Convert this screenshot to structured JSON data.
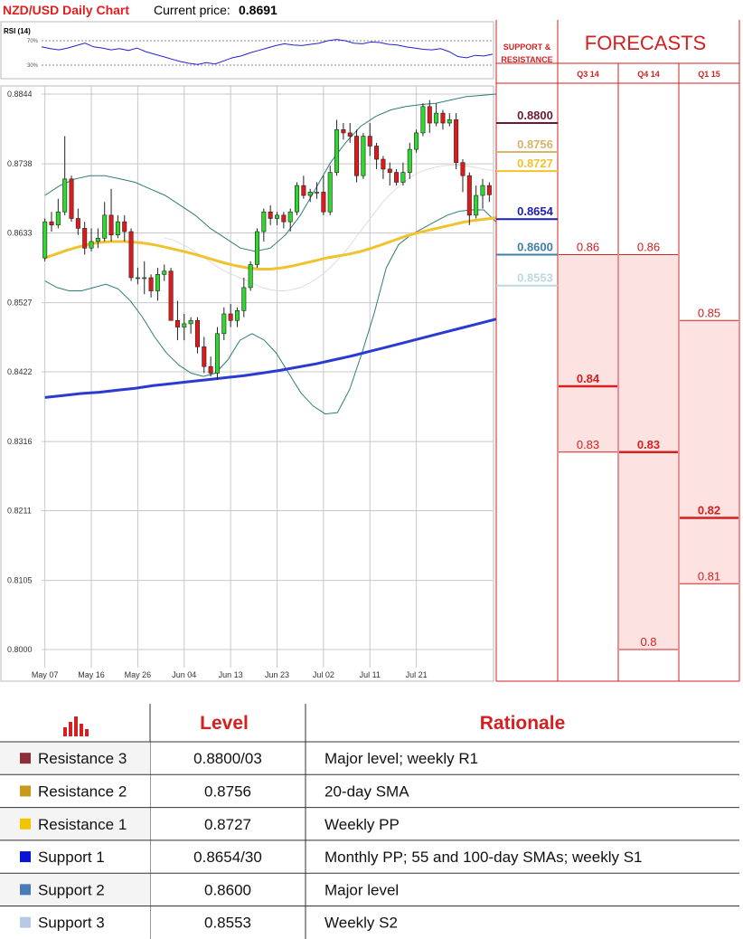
{
  "header": {
    "title": "NZD/USD Daily Chart",
    "current_price_label": "Current price:",
    "current_price": "0.8691"
  },
  "rsi": {
    "label": "RSI (14)",
    "levels": [
      "70%",
      "30%"
    ],
    "values": [
      60,
      57,
      55,
      58,
      62,
      66,
      60,
      58,
      55,
      57,
      54,
      58,
      52,
      48,
      44,
      40,
      36,
      33,
      31,
      34,
      32,
      37,
      42,
      45,
      50,
      54,
      58,
      62,
      65,
      63,
      62,
      64,
      66,
      70,
      72,
      70,
      66,
      65,
      68,
      67,
      64,
      63,
      60,
      58,
      56,
      55,
      57,
      52,
      44,
      42,
      46,
      45,
      48
    ]
  },
  "chart_data": {
    "type": "candlestick",
    "title": "NZD/USD Daily Chart",
    "ylim": [
      0.7985,
      0.8852
    ],
    "y_ticks": [
      "0.8844",
      "0.8738",
      "0.8633",
      "0.8527",
      "0.8422",
      "0.8316",
      "0.8211",
      "0.8105",
      "0.8000"
    ],
    "x_ticks": [
      "May 07",
      "May 16",
      "May 26",
      "Jun 04",
      "Jun 13",
      "Jun 23",
      "Jul 02",
      "Jul 11",
      "Jul 21"
    ],
    "x_tick_index": [
      0,
      7,
      14,
      21,
      28,
      35,
      42,
      49,
      56
    ],
    "candles": [
      [
        0.8595,
        0.8655,
        0.859,
        0.865
      ],
      [
        0.865,
        0.8665,
        0.8635,
        0.8645
      ],
      [
        0.8645,
        0.8685,
        0.864,
        0.8665
      ],
      [
        0.8665,
        0.878,
        0.866,
        0.8715
      ],
      [
        0.8715,
        0.872,
        0.865,
        0.8655
      ],
      [
        0.8655,
        0.867,
        0.863,
        0.864
      ],
      [
        0.864,
        0.865,
        0.86,
        0.861
      ],
      [
        0.861,
        0.864,
        0.8605,
        0.862
      ],
      [
        0.862,
        0.864,
        0.861,
        0.8625
      ],
      [
        0.8625,
        0.868,
        0.862,
        0.866
      ],
      [
        0.866,
        0.87,
        0.862,
        0.863
      ],
      [
        0.863,
        0.866,
        0.8625,
        0.865
      ],
      [
        0.865,
        0.866,
        0.862,
        0.8635
      ],
      [
        0.8635,
        0.864,
        0.856,
        0.8565
      ],
      [
        0.8565,
        0.858,
        0.8555,
        0.8565
      ],
      [
        0.8565,
        0.859,
        0.854,
        0.8565
      ],
      [
        0.8565,
        0.857,
        0.8535,
        0.8545
      ],
      [
        0.8545,
        0.858,
        0.853,
        0.857
      ],
      [
        0.857,
        0.8585,
        0.856,
        0.8575
      ],
      [
        0.8575,
        0.858,
        0.85,
        0.85
      ],
      [
        0.85,
        0.853,
        0.847,
        0.849
      ],
      [
        0.849,
        0.851,
        0.847,
        0.8495
      ],
      [
        0.8495,
        0.8505,
        0.848,
        0.85
      ],
      [
        0.85,
        0.8505,
        0.845,
        0.846
      ],
      [
        0.846,
        0.8475,
        0.842,
        0.843
      ],
      [
        0.843,
        0.8445,
        0.8415,
        0.842
      ],
      [
        0.842,
        0.849,
        0.841,
        0.848
      ],
      [
        0.848,
        0.852,
        0.847,
        0.851
      ],
      [
        0.851,
        0.8525,
        0.849,
        0.85
      ],
      [
        0.85,
        0.852,
        0.849,
        0.8515
      ],
      [
        0.8515,
        0.8565,
        0.8505,
        0.855
      ],
      [
        0.855,
        0.859,
        0.8545,
        0.8585
      ],
      [
        0.8585,
        0.864,
        0.858,
        0.8635
      ],
      [
        0.8635,
        0.867,
        0.862,
        0.8665
      ],
      [
        0.8665,
        0.8675,
        0.8645,
        0.8655
      ],
      [
        0.8655,
        0.8665,
        0.8645,
        0.866
      ],
      [
        0.866,
        0.8665,
        0.864,
        0.865
      ],
      [
        0.865,
        0.867,
        0.8635,
        0.8665
      ],
      [
        0.8665,
        0.871,
        0.866,
        0.8705
      ],
      [
        0.8705,
        0.872,
        0.8685,
        0.869
      ],
      [
        0.869,
        0.87,
        0.868,
        0.8695
      ],
      [
        0.8695,
        0.871,
        0.8685,
        0.8695
      ],
      [
        0.8695,
        0.872,
        0.866,
        0.8665
      ],
      [
        0.8665,
        0.8735,
        0.866,
        0.8725
      ],
      [
        0.8725,
        0.8805,
        0.872,
        0.879
      ],
      [
        0.879,
        0.88,
        0.8775,
        0.8785
      ],
      [
        0.8785,
        0.88,
        0.877,
        0.878
      ],
      [
        0.878,
        0.879,
        0.871,
        0.872
      ],
      [
        0.872,
        0.8785,
        0.8715,
        0.878
      ],
      [
        0.878,
        0.88,
        0.875,
        0.8765
      ],
      [
        0.8765,
        0.877,
        0.873,
        0.8745
      ],
      [
        0.8745,
        0.875,
        0.8715,
        0.873
      ],
      [
        0.873,
        0.874,
        0.8705,
        0.8725
      ],
      [
        0.8725,
        0.873,
        0.8705,
        0.871
      ],
      [
        0.871,
        0.874,
        0.8705,
        0.8725
      ],
      [
        0.8725,
        0.877,
        0.8715,
        0.876
      ],
      [
        0.876,
        0.879,
        0.8755,
        0.8785
      ],
      [
        0.8785,
        0.883,
        0.878,
        0.8825
      ],
      [
        0.8825,
        0.8835,
        0.8785,
        0.88
      ],
      [
        0.88,
        0.883,
        0.8795,
        0.8815
      ],
      [
        0.8815,
        0.882,
        0.879,
        0.88
      ],
      [
        0.88,
        0.8815,
        0.8795,
        0.8805
      ],
      [
        0.8805,
        0.8815,
        0.873,
        0.874
      ],
      [
        0.874,
        0.8745,
        0.8695,
        0.872
      ],
      [
        0.872,
        0.8725,
        0.8645,
        0.866
      ],
      [
        0.866,
        0.8705,
        0.8655,
        0.869
      ],
      [
        0.869,
        0.8715,
        0.867,
        0.8705
      ],
      [
        0.8705,
        0.871,
        0.868,
        0.8691
      ]
    ],
    "sma20": [
      0.8625,
      0.8623,
      0.8618,
      0.8612,
      0.8605,
      0.8598,
      0.859,
      0.8582,
      0.8575,
      0.857,
      0.8565,
      0.856,
      0.8555,
      0.855,
      0.8547,
      0.8545,
      0.8545,
      0.8547,
      0.855,
      0.8555,
      0.8562,
      0.857,
      0.858,
      0.8592,
      0.8605,
      0.862,
      0.8635,
      0.865,
      0.8665,
      0.868,
      0.8692,
      0.8703,
      0.8712,
      0.872,
      0.8726,
      0.873,
      0.8733,
      0.8735,
      0.8736,
      0.8736,
      0.8735,
      0.8733,
      0.8731,
      0.8729,
      0.8727
    ],
    "sma55": [
      0.8595,
      0.8601,
      0.8607,
      0.8612,
      0.8616,
      0.8619,
      0.862,
      0.862,
      0.8619,
      0.8617,
      0.8614,
      0.861,
      0.8606,
      0.8602,
      0.8597,
      0.8592,
      0.8587,
      0.8583,
      0.858,
      0.8578,
      0.8578,
      0.858,
      0.8583,
      0.8587,
      0.8591,
      0.8595,
      0.8598,
      0.8601,
      0.8605,
      0.861,
      0.8616,
      0.8622,
      0.8628,
      0.8633,
      0.8637,
      0.8641,
      0.8645,
      0.8649,
      0.8652,
      0.8654,
      0.8656
    ],
    "sma200": [
      0.8383,
      0.8386,
      0.8389,
      0.8391,
      0.8394,
      0.8397,
      0.8401,
      0.8404,
      0.8407,
      0.841,
      0.8413,
      0.8416,
      0.842,
      0.8424,
      0.8429,
      0.8434,
      0.844,
      0.8446,
      0.8453,
      0.846,
      0.8467,
      0.8474,
      0.8481,
      0.8488,
      0.8495,
      0.8502
    ],
    "bb_upper": [
      0.869,
      0.8705,
      0.8715,
      0.872,
      0.872,
      0.8715,
      0.871,
      0.87,
      0.869,
      0.8675,
      0.866,
      0.864,
      0.8625,
      0.861,
      0.8605,
      0.861,
      0.863,
      0.866,
      0.87,
      0.874,
      0.877,
      0.8795,
      0.881,
      0.882,
      0.8825,
      0.8828,
      0.883,
      0.8835,
      0.884,
      0.8842,
      0.8844
    ],
    "bb_lower": [
      0.856,
      0.855,
      0.8545,
      0.8545,
      0.855,
      0.8555,
      0.8548,
      0.853,
      0.8505,
      0.8475,
      0.845,
      0.8432,
      0.842,
      0.8415,
      0.842,
      0.844,
      0.847,
      0.848,
      0.847,
      0.845,
      0.842,
      0.839,
      0.837,
      0.8358,
      0.836,
      0.8395,
      0.845,
      0.851,
      0.858,
      0.8615,
      0.863,
      0.864,
      0.865,
      0.866,
      0.8666,
      0.8668,
      0.8668,
      0.865
    ],
    "support_resistance": [
      {
        "label": "0.8800",
        "value": 0.88,
        "color": "#6b1a36"
      },
      {
        "label": "0.8756",
        "value": 0.8756,
        "color": "#d9b36a"
      },
      {
        "label": "0.8727",
        "value": 0.8727,
        "color": "#f2c22e"
      },
      {
        "label": "0.8654",
        "value": 0.8654,
        "color": "#1a1fb5"
      },
      {
        "label": "0.8600",
        "value": 0.86,
        "color": "#3f7fa6"
      },
      {
        "label": "0.8553",
        "value": 0.8553,
        "color": "#bcd8e0"
      }
    ]
  },
  "forecasts": {
    "title": "FORECASTS",
    "sr_header": [
      "SUPPORT &",
      "RESISTANCE"
    ],
    "columns": [
      {
        "label": "Q3 14",
        "marks": [
          {
            "label": "0.86",
            "value": 0.86,
            "bold": false
          },
          {
            "label": "0.84",
            "value": 0.84,
            "bold": true
          },
          {
            "label": "0.83",
            "value": 0.83,
            "bold": false
          }
        ],
        "range": [
          0.83,
          0.86
        ]
      },
      {
        "label": "Q4 14",
        "marks": [
          {
            "label": "0.86",
            "value": 0.86,
            "bold": false
          },
          {
            "label": "0.83",
            "value": 0.83,
            "bold": true
          },
          {
            "label": "0.8",
            "value": 0.8,
            "bold": false
          }
        ],
        "range": [
          0.8,
          0.86
        ]
      },
      {
        "label": "Q1 15",
        "marks": [
          {
            "label": "0.85",
            "value": 0.85,
            "bold": false
          },
          {
            "label": "0.82",
            "value": 0.82,
            "bold": true
          },
          {
            "label": "0.81",
            "value": 0.81,
            "bold": false
          }
        ],
        "range": [
          0.81,
          0.85
        ]
      }
    ]
  },
  "table": {
    "headers": [
      "Level",
      "Rationale"
    ],
    "header_icon": "bar-chart-icon",
    "rows": [
      {
        "name": "Resistance 3",
        "level": "0.8800/03",
        "rationale": "Major level; weekly R1",
        "color": "#8b2f3a"
      },
      {
        "name": "Resistance 2",
        "level": "0.8756",
        "rationale": "20-day SMA",
        "color": "#c99a1a"
      },
      {
        "name": "Resistance 1",
        "level": "0.8727",
        "rationale": "Weekly PP",
        "color": "#f5c400"
      },
      {
        "name": "Support 1",
        "level": "0.8654/30",
        "rationale": "Monthly PP; 55 and 100-day SMAs; weekly S1",
        "color": "#0a14d6"
      },
      {
        "name": "Support 2",
        "level": "0.8600",
        "rationale": "Major level",
        "color": "#4a7ab8"
      },
      {
        "name": "Support 3",
        "level": "0.8553",
        "rationale": "Weekly S2",
        "color": "#b7c9e6"
      }
    ]
  }
}
